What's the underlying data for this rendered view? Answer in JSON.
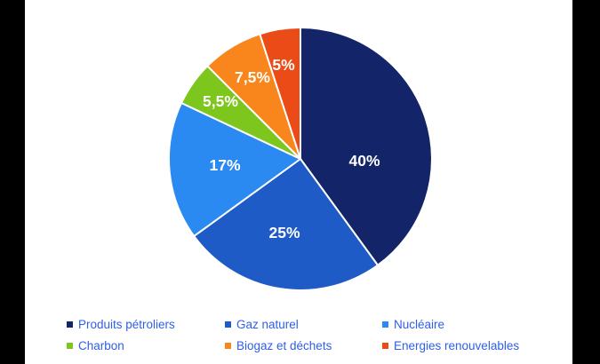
{
  "chart_data": {
    "type": "pie",
    "title": "",
    "start_angle_deg": 0,
    "direction": "clockwise",
    "total": 100,
    "slices": [
      {
        "label": "Produits pétroliers",
        "value": 40,
        "display": "40%",
        "color": "#132468"
      },
      {
        "label": "Gaz naturel",
        "value": 25,
        "display": "25%",
        "color": "#1e5bc6"
      },
      {
        "label": "Nucléaire",
        "value": 17,
        "display": "17%",
        "color": "#2a8af2"
      },
      {
        "label": "Charbon",
        "value": 5.5,
        "display": "5,5%",
        "color": "#7dc61e"
      },
      {
        "label": "Biogaz et déchets",
        "value": 7.5,
        "display": "7,5%",
        "color": "#f8861d"
      },
      {
        "label": "Energies renouvelables",
        "value": 5,
        "display": "5%",
        "color": "#ea4b17"
      }
    ],
    "slice_label_color": "#ffffff",
    "slice_border_color": "#ffffff",
    "legend": {
      "position": "bottom",
      "rows": 2,
      "columns": 3,
      "text_color": "#2e5fe8",
      "order": "row-major"
    },
    "colors": {
      "background": "#ffffff",
      "letterbox": "#000000"
    }
  }
}
